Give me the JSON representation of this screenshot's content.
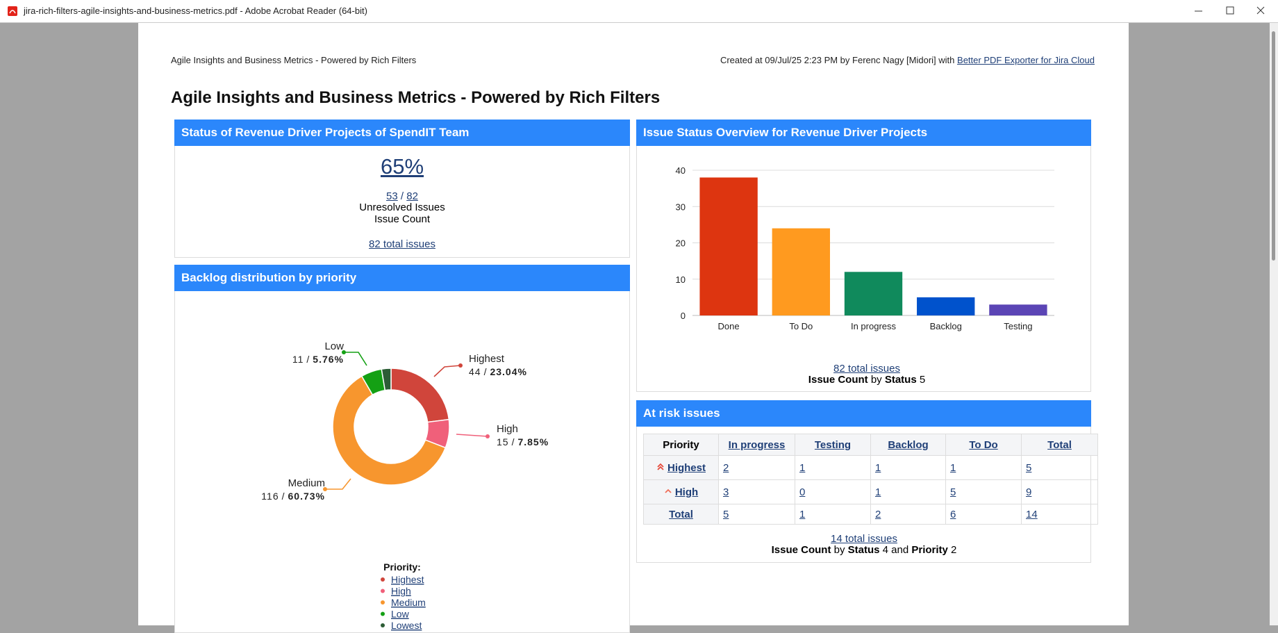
{
  "window": {
    "title": "jira-rich-filters-agile-insights-and-business-metrics.pdf - Adobe Acrobat Reader (64-bit)"
  },
  "header": {
    "left": "Agile Insights and Business Metrics - Powered by Rich Filters",
    "created": "Created at 09/Jul/25 2:23 PM by Ferenc Nagy [Midori] with",
    "link": "Better PDF Exporter for Jira Cloud"
  },
  "title": "Agile Insights and Business Metrics - Powered by Rich Filters",
  "status_panel": {
    "title": "Status of Revenue Driver Projects of SpendIT Team",
    "percent": "65%",
    "numerator": "53",
    "separator": "/",
    "denominator": "82",
    "line1": "Unresolved Issues",
    "line2": "Issue Count",
    "total_link": "82 total issues"
  },
  "risk_panel": {
    "title": "At risk issues",
    "columns": [
      "Priority",
      "In progress",
      "Testing",
      "Backlog",
      "To Do",
      "Total"
    ],
    "rows": [
      [
        "Highest",
        2,
        1,
        1,
        1,
        5
      ],
      [
        "High",
        3,
        0,
        1,
        5,
        9
      ],
      [
        "Total",
        5,
        1,
        2,
        6,
        14
      ]
    ],
    "total_link": "14 total issues",
    "measure": "Issue Count",
    "by": "by",
    "field1": "Status",
    "count1": "4",
    "and": "and",
    "field2": "Priority",
    "count2": "2"
  },
  "chart_data": [
    {
      "type": "bar",
      "title": "Issue Status Overview for Revenue Driver Projects",
      "categories": [
        "Done",
        "To Do",
        "In progress",
        "Backlog",
        "Testing"
      ],
      "values": [
        38,
        24,
        12,
        5,
        3
      ],
      "colors": [
        "#dd3510",
        "#ff9a1f",
        "#108a5c",
        "#0052cc",
        "#5b45b5"
      ],
      "ylim": [
        0,
        40
      ],
      "yticks": [
        0,
        10,
        20,
        30,
        40
      ],
      "grid": true,
      "total_link": "82 total issues",
      "measure": "Issue Count",
      "by": "by",
      "field": "Status",
      "count": "5"
    },
    {
      "type": "donut",
      "title": "Backlog distribution by priority",
      "categories": [
        "Highest",
        "High",
        "Medium",
        "Low",
        "Lowest"
      ],
      "values": [
        44,
        15,
        116,
        11,
        5
      ],
      "percents": [
        23.04,
        7.85,
        60.73,
        5.76,
        2.62
      ],
      "percent_labels": [
        "23.04%",
        "7.85%",
        "60.73%",
        "5.76%",
        null
      ],
      "separator": "/",
      "colors": [
        "#d0453b",
        "#f0607a",
        "#f7962e",
        "#14a014",
        "#2d5d36"
      ],
      "legend_title": "Priority:"
    }
  ]
}
